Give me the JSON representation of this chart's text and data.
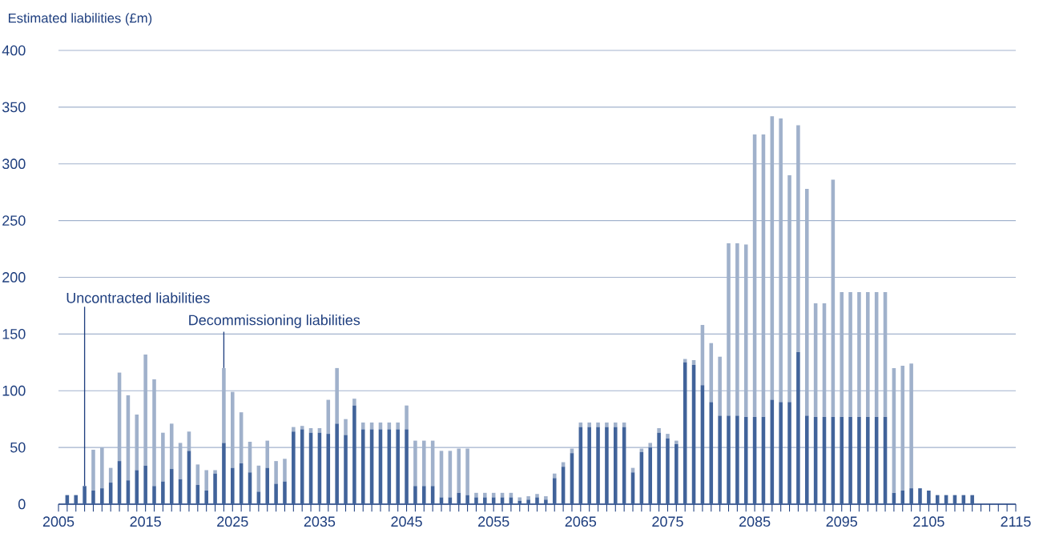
{
  "chart_data": {
    "type": "bar",
    "stacked": true,
    "ylabel": "Estimated liabilities (£m)",
    "x": [
      2006,
      2007,
      2008,
      2009,
      2010,
      2011,
      2012,
      2013,
      2014,
      2015,
      2016,
      2017,
      2018,
      2019,
      2020,
      2021,
      2022,
      2023,
      2024,
      2025,
      2026,
      2027,
      2028,
      2029,
      2030,
      2031,
      2032,
      2033,
      2034,
      2035,
      2036,
      2037,
      2038,
      2039,
      2040,
      2041,
      2042,
      2043,
      2044,
      2045,
      2046,
      2047,
      2048,
      2049,
      2050,
      2051,
      2052,
      2053,
      2054,
      2055,
      2056,
      2057,
      2058,
      2059,
      2060,
      2061,
      2062,
      2063,
      2064,
      2065,
      2066,
      2067,
      2068,
      2069,
      2070,
      2071,
      2072,
      2073,
      2074,
      2075,
      2076,
      2077,
      2078,
      2079,
      2080,
      2081,
      2082,
      2083,
      2084,
      2085,
      2086,
      2087,
      2088,
      2089,
      2090,
      2091,
      2092,
      2093,
      2094,
      2095,
      2096,
      2097,
      2098,
      2099,
      2100,
      2101,
      2102,
      2103,
      2104,
      2105,
      2106,
      2107,
      2108,
      2109,
      2110
    ],
    "series": [
      {
        "color": "#41639a",
        "values": [
          8,
          8,
          16,
          12,
          14,
          19,
          38,
          21,
          30,
          34,
          16,
          20,
          31,
          22,
          47,
          17,
          12,
          27,
          54,
          32,
          36,
          28,
          11,
          32,
          18,
          20,
          64,
          66,
          63,
          63,
          62,
          71,
          61,
          87,
          66,
          66,
          66,
          66,
          66,
          66,
          16,
          16,
          16,
          6,
          6,
          10,
          8,
          6,
          6,
          6,
          6,
          6,
          3,
          4,
          6,
          4,
          23,
          33,
          45,
          68,
          68,
          68,
          68,
          68,
          68,
          28,
          46,
          50,
          63,
          58,
          53,
          125,
          123,
          105,
          90,
          78,
          78,
          78,
          77,
          77,
          77,
          92,
          90,
          90,
          134,
          78,
          77,
          77,
          77,
          77,
          77,
          77,
          77,
          77,
          77,
          10,
          12,
          14,
          14,
          12,
          8,
          8,
          8,
          8,
          8
        ]
      },
      {
        "color": "#a0b1cb",
        "values": [
          0,
          0,
          0,
          36,
          36,
          13,
          78,
          75,
          49,
          98,
          94,
          43,
          40,
          32,
          17,
          18,
          18,
          3,
          66,
          67,
          45,
          27,
          23,
          24,
          20,
          20,
          4,
          3,
          4,
          4,
          30,
          49,
          14,
          6,
          6,
          6,
          6,
          6,
          6,
          21,
          40,
          40,
          40,
          41,
          41,
          39,
          41,
          4,
          4,
          4,
          4,
          4,
          3,
          3,
          3,
          3,
          4,
          4,
          4,
          4,
          4,
          4,
          4,
          4,
          4,
          4,
          3,
          4,
          4,
          4,
          3,
          3,
          4,
          53,
          52,
          52,
          152,
          152,
          152,
          249,
          249,
          250,
          250,
          200,
          200,
          200,
          100,
          100,
          209,
          110,
          110,
          110,
          110,
          110,
          110,
          110,
          110,
          110,
          0,
          0,
          0,
          0,
          0,
          0,
          0
        ]
      }
    ],
    "xlim": [
      2005,
      2115
    ],
    "xticks": [
      2005,
      2015,
      2025,
      2035,
      2045,
      2055,
      2065,
      2075,
      2085,
      2095,
      2105,
      2115
    ],
    "ylim": [
      0,
      400
    ],
    "yticks": [
      0,
      50,
      100,
      150,
      200,
      250,
      300,
      350,
      400
    ],
    "grid": "y",
    "annotations": [
      {
        "text": "Uncontracted liabilities",
        "x": 2008,
        "y": 16
      },
      {
        "text": "Decommissioning liabilities",
        "x": 2024,
        "y": 120
      }
    ]
  }
}
